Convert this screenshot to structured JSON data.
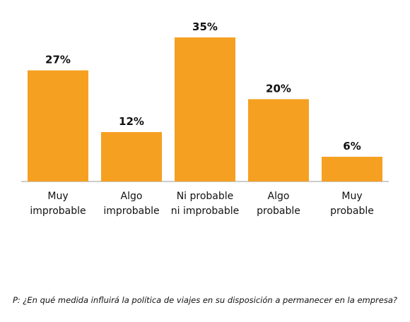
{
  "chart_data": {
    "type": "bar",
    "categories": [
      [
        "Muy",
        "improbable"
      ],
      [
        "Algo",
        "improbable"
      ],
      [
        "Ni probable",
        "ni improbable"
      ],
      [
        "Algo",
        "probable"
      ],
      [
        "Muy",
        "probable"
      ]
    ],
    "values": [
      27,
      12,
      35,
      20,
      6
    ],
    "value_labels": [
      "27%",
      "12%",
      "35%",
      "20%",
      "6%"
    ],
    "ylim": [
      0,
      35
    ],
    "grid": false,
    "legend": "none",
    "bar_color": "#F5A021"
  },
  "footnote": "P: ¿En qué medida influirá la política de viajes en su disposición a permanecer en la empresa?"
}
